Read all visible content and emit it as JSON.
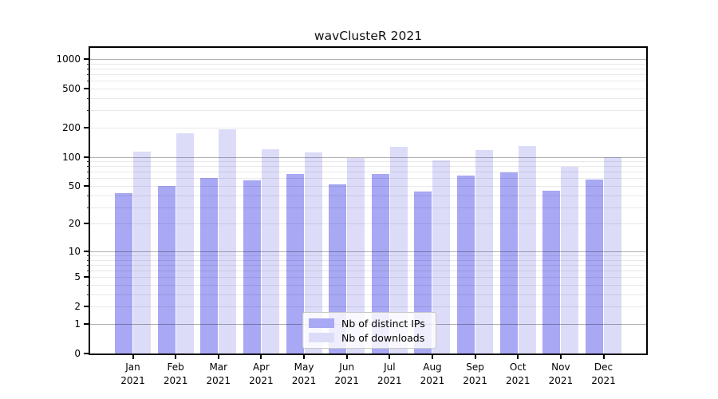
{
  "chart_data": {
    "type": "bar",
    "title": "wavClusteR 2021",
    "year": "2021",
    "categories": [
      "Jan",
      "Feb",
      "Mar",
      "Apr",
      "May",
      "Jun",
      "Jul",
      "Aug",
      "Sep",
      "Oct",
      "Nov",
      "Dec"
    ],
    "series": [
      {
        "name": "Nb of distinct IPs",
        "color": "#a8a8f4",
        "values": [
          42,
          50,
          60,
          57,
          66,
          52,
          67,
          44,
          64,
          69,
          45,
          58
        ]
      },
      {
        "name": "Nb of downloads",
        "color": "#dcdcf9",
        "values": [
          113,
          173,
          191,
          119,
          112,
          98,
          127,
          92,
          117,
          129,
          79,
          100
        ]
      }
    ],
    "y_axis": {
      "scale": "log1p",
      "ylim": [
        0,
        1300
      ],
      "tick_labels": [
        0,
        1,
        2,
        5,
        10,
        20,
        50,
        100,
        200,
        500,
        1000
      ],
      "major_gridlines": [
        1,
        10,
        100,
        1000
      ],
      "minor_gridlines": [
        2,
        3,
        4,
        5,
        6,
        7,
        8,
        9,
        20,
        30,
        40,
        50,
        60,
        70,
        80,
        90,
        200,
        300,
        400,
        500,
        600,
        700,
        800,
        900
      ],
      "grid": true
    },
    "x_axis": {
      "tick_style": "month-over-year"
    },
    "legend_position": "lower center"
  },
  "colors": {
    "spine": "#000000",
    "major_grid": "#b0b0b0",
    "minor_grid": "#e9e9e9",
    "background": "#ffffff"
  }
}
